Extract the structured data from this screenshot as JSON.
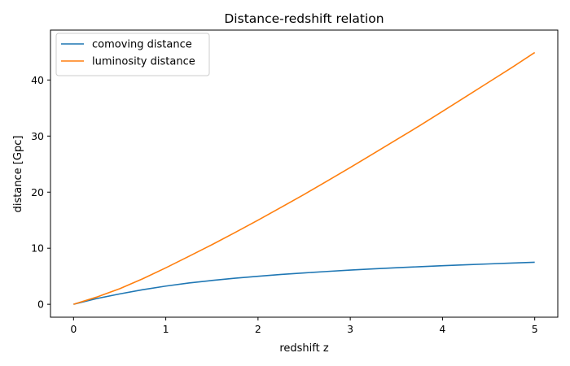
{
  "chart_data": {
    "type": "line",
    "title": "Distance-redshift relation",
    "xlabel": "redshift z",
    "ylabel": "distance [Gpc]",
    "xlim": [
      -0.25,
      5.25
    ],
    "ylim": [
      -2.3,
      48.9
    ],
    "xticks": [
      0,
      1,
      2,
      3,
      4,
      5
    ],
    "yticks": [
      0,
      10,
      20,
      30,
      40
    ],
    "grid": false,
    "legend_position": "top-left",
    "x": [
      0,
      0.25,
      0.5,
      0.75,
      1.0,
      1.25,
      1.5,
      1.75,
      2.0,
      2.25,
      2.5,
      2.75,
      3.0,
      3.25,
      3.5,
      3.75,
      4.0,
      4.25,
      4.5,
      4.75,
      5.0
    ],
    "series": [
      {
        "name": "comoving distance",
        "color": "#1f77b4",
        "values": [
          0,
          1.02,
          1.85,
          2.6,
          3.25,
          3.8,
          4.25,
          4.65,
          5.0,
          5.32,
          5.6,
          5.86,
          6.1,
          6.32,
          6.52,
          6.7,
          6.88,
          7.05,
          7.2,
          7.35,
          7.5
        ]
      },
      {
        "name": "luminosity distance",
        "color": "#ff7f0e",
        "values": [
          0,
          1.28,
          2.78,
          4.55,
          6.5,
          8.55,
          10.63,
          12.79,
          15.0,
          17.29,
          19.6,
          21.98,
          24.4,
          26.86,
          29.34,
          31.83,
          34.4,
          37.0,
          39.6,
          42.2,
          44.9
        ]
      }
    ]
  }
}
